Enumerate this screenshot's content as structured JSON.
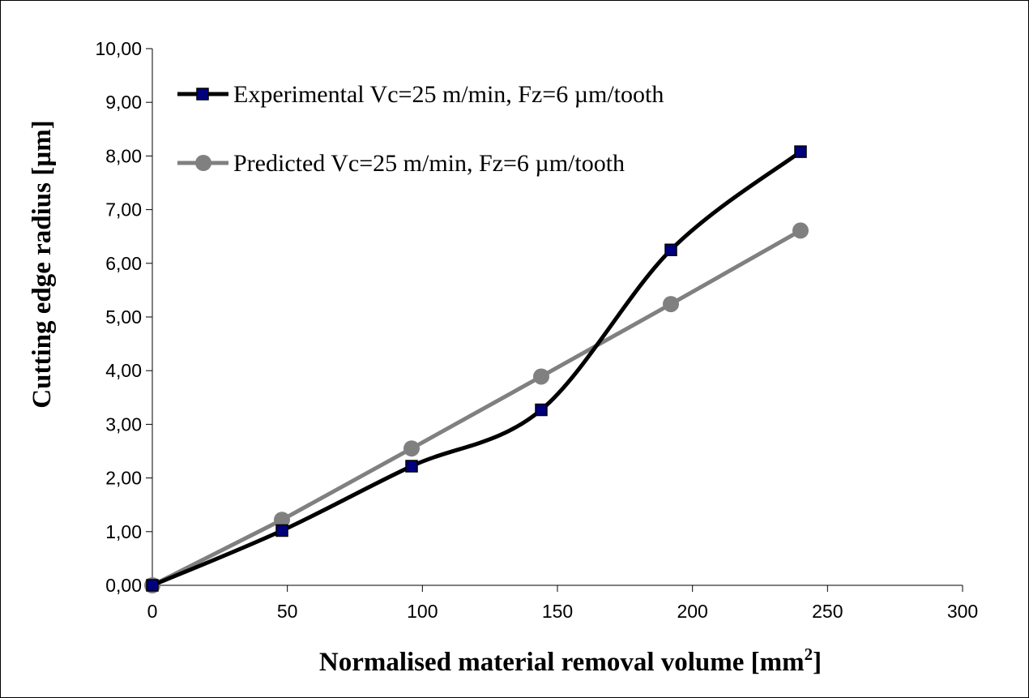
{
  "chart_data": {
    "type": "line",
    "title": "",
    "xlabel": "Normalised material removal volume [mm",
    "xlabel_superscript": "2",
    "xlabel_suffix": "]",
    "ylabel": "Cutting edge radius [µm]",
    "xlim": [
      0,
      300
    ],
    "ylim": [
      0,
      10
    ],
    "x_ticks": [
      "0",
      "50",
      "100",
      "150",
      "200",
      "250",
      "300"
    ],
    "y_ticks": [
      "0,00",
      "1,00",
      "2,00",
      "3,00",
      "4,00",
      "5,00",
      "6,00",
      "7,00",
      "8,00",
      "9,00",
      "10,00"
    ],
    "grid": false,
    "legend_position": "top-left",
    "series": [
      {
        "name": "Experimental Vc=25 m/min, Fz=6 µm/tooth",
        "color": "#000000",
        "marker": "square",
        "marker_fill": "#00007f",
        "smooth": true,
        "x": [
          0,
          48,
          96,
          144,
          192,
          240
        ],
        "y": [
          0.0,
          1.02,
          2.22,
          3.27,
          6.25,
          8.08
        ]
      },
      {
        "name": "Predicted Vc=25 m/min, Fz=6 µm/tooth",
        "color": "#808080",
        "marker": "circle",
        "marker_fill": "#808080",
        "smooth": false,
        "x": [
          0,
          48,
          96,
          144,
          192,
          240
        ],
        "y": [
          0.0,
          1.22,
          2.55,
          3.89,
          5.24,
          6.61
        ]
      }
    ]
  }
}
